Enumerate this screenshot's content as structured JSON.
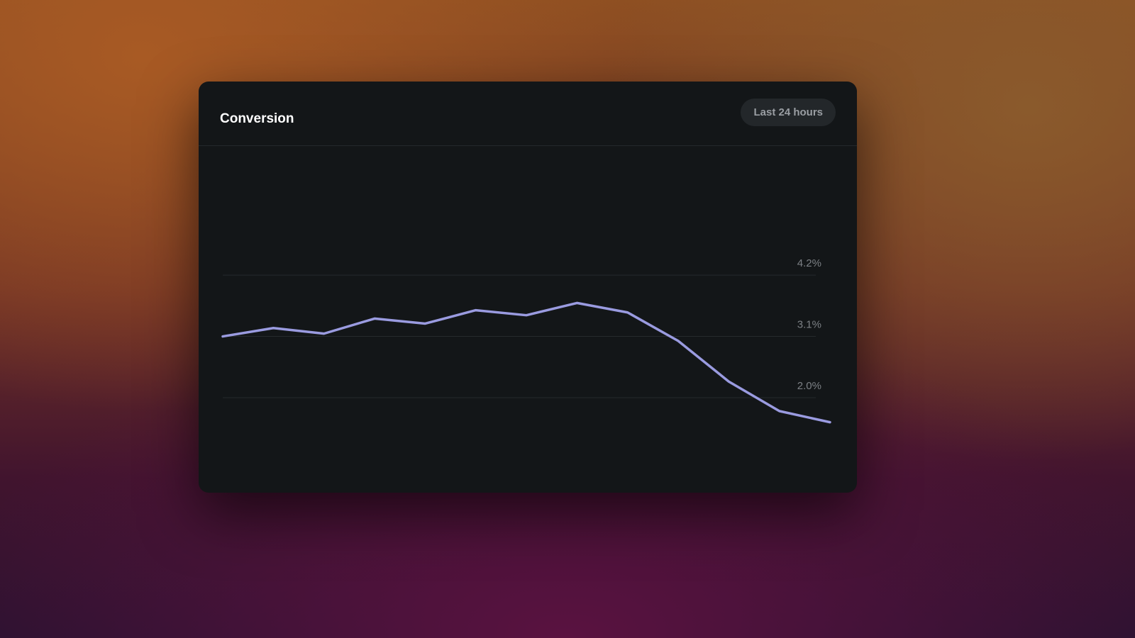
{
  "chart_data": {
    "type": "line",
    "title": "Conversion",
    "time_range": "Last 24 hours",
    "categories": [
      null,
      null,
      null,
      null,
      null,
      null,
      null,
      null,
      null,
      null,
      null,
      null,
      null
    ],
    "series": [
      {
        "color": "#9a9be0",
        "values": [
          3.1,
          3.25,
          3.15,
          3.42,
          3.33,
          3.57,
          3.48,
          3.7,
          3.53,
          3.02,
          2.29,
          1.76,
          1.56
        ]
      }
    ],
    "ylim": [
      0.9,
      6.3
    ],
    "yticks": [
      {
        "value": 2.0,
        "label": "2.0%"
      },
      {
        "value": 3.1,
        "label": "3.1%"
      },
      {
        "value": 4.2,
        "label": "4.2%"
      }
    ],
    "grid": true
  }
}
